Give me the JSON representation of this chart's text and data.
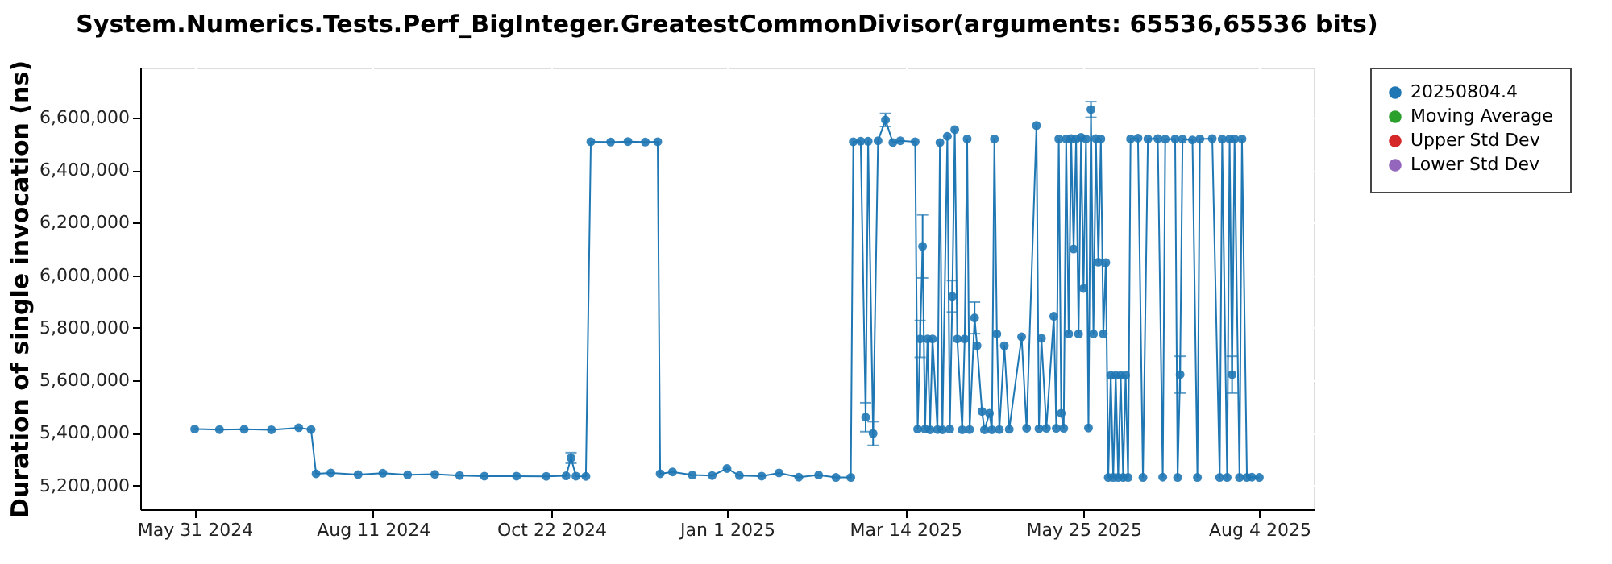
{
  "chart_data": {
    "type": "line",
    "title": "System.Numerics.Tests.Perf_BigInteger.GreatestCommonDivisor(arguments: 65536,65536 bits)",
    "ylabel": "Duration of single invocation (ns)",
    "xlim": [
      "2024-05-09",
      "2025-08-26"
    ],
    "xticks": [
      {
        "value": "2024-05-31",
        "label": "May 31 2024"
      },
      {
        "value": "2024-08-11",
        "label": "Aug 11 2024"
      },
      {
        "value": "2024-10-22",
        "label": "Oct 22 2024"
      },
      {
        "value": "2025-01-01",
        "label": "Jan 1 2025"
      },
      {
        "value": "2025-03-14",
        "label": "Mar 14 2025"
      },
      {
        "value": "2025-05-25",
        "label": "May 25 2025"
      },
      {
        "value": "2025-08-04",
        "label": "Aug 4 2025"
      }
    ],
    "ylim": [
      5110000,
      6790000
    ],
    "yticks": [
      {
        "value": 5200000,
        "label": "5,200,000"
      },
      {
        "value": 5400000,
        "label": "5,400,000"
      },
      {
        "value": 5600000,
        "label": "5,600,000"
      },
      {
        "value": 5800000,
        "label": "5,800,000"
      },
      {
        "value": 6000000,
        "label": "6,000,000"
      },
      {
        "value": 6200000,
        "label": "6,200,000"
      },
      {
        "value": 6400000,
        "label": "6,400,000"
      },
      {
        "value": 6600000,
        "label": "6,600,000"
      }
    ],
    "grid": true,
    "legend": "right",
    "marker": "circle",
    "line_style": "solid",
    "series": [
      {
        "name": "20250804.4",
        "color": "#1f77b4",
        "x": [
          "2024-05-31",
          "2024-06-10",
          "2024-06-20",
          "2024-07-01",
          "2024-07-12",
          "2024-07-17",
          "2024-07-19",
          "2024-07-25",
          "2024-08-05",
          "2024-08-15",
          "2024-08-25",
          "2024-09-05",
          "2024-09-15",
          "2024-09-25",
          "2024-10-08",
          "2024-10-20",
          "2024-10-28",
          "2024-10-30",
          "2024-11-01",
          "2024-11-05",
          "2024-11-07",
          "2024-11-15",
          "2024-11-22",
          "2024-11-29",
          "2024-12-04",
          "2024-12-05",
          "2024-12-10",
          "2024-12-18",
          "2024-12-26",
          "2025-01-01",
          "2025-01-06",
          "2025-01-15",
          "2025-01-22",
          "2025-01-30",
          "2025-02-07",
          "2025-02-14",
          "2025-02-20",
          "2025-02-21",
          "2025-02-24",
          "2025-02-26",
          "2025-02-27",
          "2025-03-01",
          "2025-03-03",
          "2025-03-06",
          "2025-03-09",
          "2025-03-12",
          "2025-03-18",
          "2025-03-19",
          "2025-03-20",
          "2025-03-21",
          "2025-03-22",
          "2025-03-23",
          "2025-03-24",
          "2025-03-25",
          "2025-03-27",
          "2025-03-28",
          "2025-03-29",
          "2025-03-31",
          "2025-04-01",
          "2025-04-02",
          "2025-04-03",
          "2025-04-04",
          "2025-04-06",
          "2025-04-07",
          "2025-04-08",
          "2025-04-09",
          "2025-04-11",
          "2025-04-12",
          "2025-04-14",
          "2025-04-15",
          "2025-04-17",
          "2025-04-18",
          "2025-04-19",
          "2025-04-20",
          "2025-04-21",
          "2025-04-23",
          "2025-04-25",
          "2025-04-30",
          "2025-05-02",
          "2025-05-06",
          "2025-05-07",
          "2025-05-08",
          "2025-05-10",
          "2025-05-13",
          "2025-05-14",
          "2025-05-15",
          "2025-05-16",
          "2025-05-17",
          "2025-05-18",
          "2025-05-19",
          "2025-05-20",
          "2025-05-21",
          "2025-05-22",
          "2025-05-23",
          "2025-05-24",
          "2025-05-25",
          "2025-05-26",
          "2025-05-27",
          "2025-05-28",
          "2025-05-29",
          "2025-05-30",
          "2025-05-31",
          "2025-06-01",
          "2025-06-02",
          "2025-06-03",
          "2025-06-04",
          "2025-06-05",
          "2025-06-06",
          "2025-06-07",
          "2025-06-08",
          "2025-06-09",
          "2025-06-10",
          "2025-06-11",
          "2025-06-12",
          "2025-06-13",
          "2025-06-16",
          "2025-06-18",
          "2025-06-20",
          "2025-06-24",
          "2025-06-26",
          "2025-06-27",
          "2025-07-01",
          "2025-07-02",
          "2025-07-03",
          "2025-07-04",
          "2025-07-08",
          "2025-07-10",
          "2025-07-11",
          "2025-07-16",
          "2025-07-19",
          "2025-07-20",
          "2025-07-22",
          "2025-07-23",
          "2025-07-24",
          "2025-07-25",
          "2025-07-27",
          "2025-07-28",
          "2025-07-30",
          "2025-08-01",
          "2025-08-04"
        ],
        "values": [
          5415000,
          5413000,
          5414000,
          5412000,
          5420000,
          5413000,
          5245000,
          5248000,
          5242000,
          5247000,
          5241000,
          5243000,
          5238000,
          5236000,
          5236000,
          5235000,
          5237000,
          5305000,
          5236000,
          5235000,
          6508000,
          6507000,
          6509000,
          6507000,
          6508000,
          5245000,
          5252000,
          5240000,
          5238000,
          5265000,
          5238000,
          5236000,
          5248000,
          5232000,
          5240000,
          5231000,
          5231000,
          6508000,
          6510000,
          5460000,
          6510000,
          5398000,
          6512000,
          6591000,
          6505000,
          6512000,
          6508000,
          5415000,
          5758000,
          6110000,
          5415000,
          5758000,
          5412000,
          5758000,
          5413000,
          6505000,
          5412000,
          6529000,
          5415000,
          5920000,
          6554000,
          5758000,
          5412000,
          5758000,
          6519000,
          5413000,
          5838000,
          5732000,
          5482000,
          5412000,
          5475000,
          5412000,
          6519000,
          5777000,
          5413000,
          5732000,
          5414000,
          5766000,
          5418000,
          6570000,
          5416000,
          5760000,
          5418000,
          5844000,
          5418000,
          6519000,
          5475000,
          5418000,
          6519000,
          5777000,
          6520000,
          6100000,
          6519000,
          5777000,
          6525000,
          5950000,
          6519000,
          5419000,
          6631000,
          5777000,
          6520000,
          6050000,
          6519000,
          5777000,
          6048000,
          5231000,
          5619000,
          5231000,
          5619000,
          5231000,
          5619000,
          5231000,
          5619000,
          5231000,
          6519000,
          6522000,
          5231000,
          6519000,
          6520000,
          5232000,
          6518000,
          6519000,
          5231000,
          5622000,
          6518000,
          6515000,
          5231000,
          6519000,
          6520000,
          5231000,
          6518000,
          5231000,
          6519000,
          5622000,
          6519000,
          5231000,
          6519000,
          5231000,
          5232000,
          5231000
        ],
        "errors": [
          null,
          null,
          null,
          null,
          null,
          null,
          null,
          null,
          null,
          null,
          null,
          null,
          null,
          null,
          null,
          null,
          null,
          20000,
          null,
          null,
          null,
          null,
          null,
          null,
          null,
          null,
          null,
          null,
          null,
          null,
          null,
          null,
          null,
          null,
          null,
          null,
          null,
          null,
          null,
          55000,
          null,
          45000,
          null,
          25000,
          null,
          null,
          null,
          null,
          70000,
          120000,
          null,
          null,
          null,
          null,
          null,
          null,
          null,
          null,
          null,
          60000,
          null,
          null,
          null,
          null,
          null,
          null,
          60000,
          null,
          null,
          null,
          null,
          null,
          null,
          null,
          null,
          null,
          null,
          null,
          null,
          null,
          null,
          null,
          null,
          null,
          null,
          null,
          null,
          null,
          null,
          null,
          null,
          null,
          null,
          null,
          null,
          null,
          null,
          null,
          30000,
          null,
          null,
          null,
          null,
          null,
          null,
          null,
          null,
          null,
          null,
          null,
          null,
          null,
          null,
          null,
          null,
          null,
          null,
          null,
          null,
          null,
          null,
          null,
          null,
          70000,
          null,
          null,
          null,
          null,
          null,
          null,
          null,
          null,
          null,
          70000,
          null,
          null,
          null,
          null,
          null,
          null
        ]
      },
      {
        "name": "Moving Average",
        "color": "#2ca02c"
      },
      {
        "name": "Upper Std Dev",
        "color": "#d62728"
      },
      {
        "name": "Lower Std Dev",
        "color": "#9467bd"
      }
    ]
  }
}
